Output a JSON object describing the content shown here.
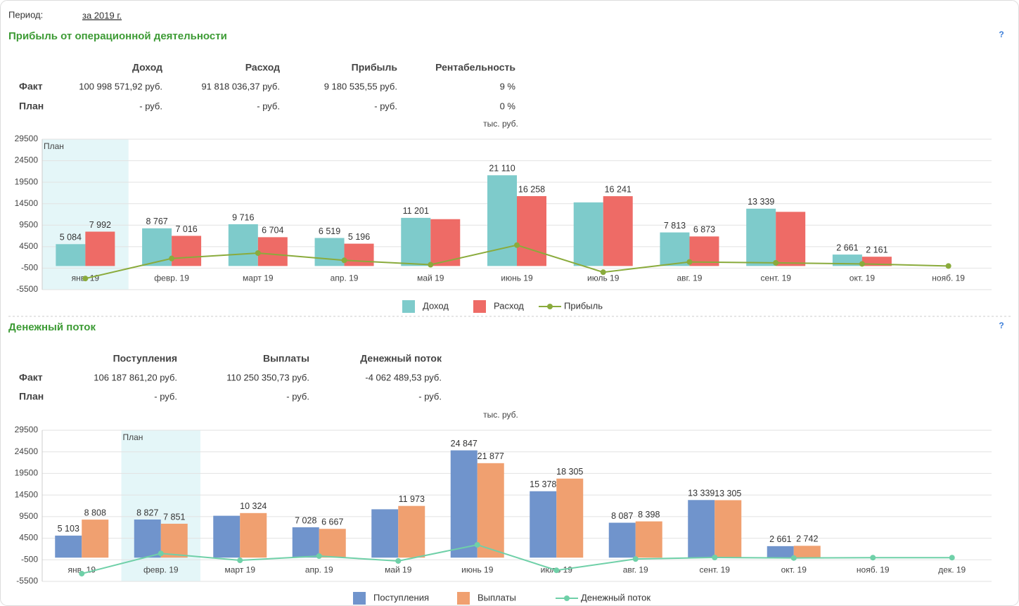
{
  "period": {
    "label": "Период:",
    "value": "за 2019 г."
  },
  "sections": [
    {
      "title": "Прибыль от операционной деятельности",
      "help": "?",
      "table": {
        "columns": [
          "Доход",
          "Расход",
          "Прибыль",
          "Рентабельность"
        ],
        "rows": [
          {
            "label": "Факт",
            "cells": [
              "100 998 571,92 руб.",
              "91 818 036,37 руб.",
              "9 180 535,55 руб.",
              "9 %"
            ]
          },
          {
            "label": "План",
            "cells": [
              "- руб.",
              "- руб.",
              "- руб.",
              "0 %"
            ]
          }
        ]
      }
    },
    {
      "title": "Денежный поток",
      "help": "?",
      "table": {
        "columns": [
          "Поступления",
          "Выплаты",
          "Денежный поток"
        ],
        "rows": [
          {
            "label": "Факт",
            "cells": [
              "106 187 861,20 руб.",
              "110 250 350,73 руб.",
              "-4 062 489,53 руб."
            ]
          },
          {
            "label": "План",
            "cells": [
              "- руб.",
              "- руб.",
              "- руб."
            ]
          }
        ]
      }
    }
  ],
  "chart_data": [
    {
      "type": "bar",
      "unit": "тыс. руб.",
      "categories": [
        "янв. 19",
        "февр. 19",
        "март 19",
        "апр. 19",
        "май 19",
        "июнь 19",
        "июль 19",
        "авг. 19",
        "сент. 19",
        "окт. 19",
        "нояб. 19"
      ],
      "series": [
        {
          "name": "Доход",
          "color": "#7ecbcb",
          "values": [
            5084,
            8767,
            9716,
            6519,
            11201,
            21110,
            14800,
            7813,
            13339,
            2661,
            0
          ],
          "value_labels": [
            "5 084",
            "8 767",
            "9 716",
            "6 519",
            "11 201",
            "21 110",
            null,
            "7 813",
            "13 339",
            "2 661",
            null
          ]
        },
        {
          "name": "Расход",
          "color": "#ee6b66",
          "values": [
            7992,
            7016,
            6704,
            5196,
            10900,
            16258,
            16241,
            6873,
            12600,
            2161,
            0
          ],
          "value_labels": [
            "7 992",
            "7 016",
            "6 704",
            "5 196",
            null,
            "16 258",
            "16 241",
            "6 873",
            null,
            "2 161",
            null
          ]
        },
        {
          "name": "Прибыль",
          "color": "#8aab3c",
          "type": "line",
          "values": [
            -2908,
            1751,
            3012,
            1323,
            301,
            4852,
            -1441,
            940,
            739,
            500,
            0
          ]
        }
      ],
      "ylim": [
        -5500,
        29500
      ],
      "yticks": [
        -5500,
        -500,
        4500,
        9500,
        14500,
        19500,
        24500,
        29500
      ],
      "grid": true,
      "legend": "bottom",
      "highlight": {
        "label": "План",
        "category": "янв. 19"
      }
    },
    {
      "type": "bar",
      "unit": "тыс. руб.",
      "categories": [
        "янв. 19",
        "февр. 19",
        "март 19",
        "апр. 19",
        "май 19",
        "июнь 19",
        "июль 19",
        "авг. 19",
        "сент. 19",
        "окт. 19",
        "нояб. 19",
        "дек. 19"
      ],
      "series": [
        {
          "name": "Поступления",
          "color": "#7094cc",
          "values": [
            5103,
            8827,
            9700,
            7028,
            11200,
            24847,
            15378,
            8087,
            13339,
            2661,
            0,
            0
          ],
          "value_labels": [
            "5 103",
            "8 827",
            null,
            "7 028",
            null,
            "24 847",
            "15 378",
            "8 087",
            "13 339",
            "2 661",
            null,
            null
          ]
        },
        {
          "name": "Выплаты",
          "color": "#f0a070",
          "values": [
            8808,
            7851,
            10324,
            6667,
            11973,
            21877,
            18305,
            8398,
            13305,
            2742,
            0,
            0
          ],
          "value_labels": [
            "8 808",
            "7 851",
            "10 324",
            "6 667",
            "11 973",
            "21 877",
            "18 305",
            "8 398",
            "13 305",
            "2 742",
            null,
            null
          ]
        },
        {
          "name": "Денежный поток",
          "color": "#6fd0a8",
          "type": "line",
          "values": [
            -3705,
            976,
            -624,
            361,
            -773,
            2970,
            -2927,
            -311,
            34,
            -81,
            0,
            0
          ]
        }
      ],
      "ylim": [
        -5500,
        29500
      ],
      "yticks": [
        -5500,
        -500,
        4500,
        9500,
        14500,
        19500,
        24500,
        29500
      ],
      "grid": true,
      "legend": "bottom",
      "highlight": {
        "label": "План",
        "category": "февр. 19"
      }
    }
  ]
}
